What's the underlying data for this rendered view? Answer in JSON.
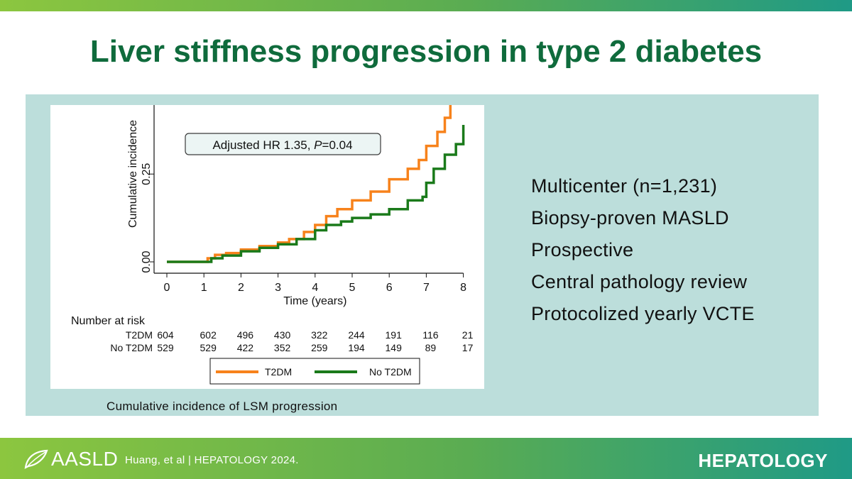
{
  "slide": {
    "title": "Liver stiffness progression in type 2 diabetes",
    "caption": "Cumulative incidence of LSM progression",
    "bullets": [
      "Multicenter (n=1,231)",
      "Biopsy-proven  MASLD",
      "Prospective",
      "Central pathology  review",
      "Protocolized  yearly VCTE"
    ]
  },
  "footer": {
    "logo_text": "AASLD",
    "citation": "Huang,  et al  |  HEPATOLOGY  2024.",
    "journal": "HEPATOLOGY"
  },
  "colors": {
    "title": "#0f6b3c",
    "panel": "#bcdedb",
    "t2dm": "#f7821b",
    "no_t2dm": "#1a7a1a"
  },
  "chart_data": {
    "type": "line",
    "xlabel": "Time (years)",
    "ylabel": "Cumulative incidence",
    "x_ticks": [
      0,
      1,
      2,
      3,
      4,
      5,
      6,
      7,
      8
    ],
    "y_ticks": [
      "0.00",
      "0.25"
    ],
    "xlim": [
      0,
      8
    ],
    "ylim": [
      0,
      0.45
    ],
    "annotation": {
      "prefix": "Adjusted HR 1.35, ",
      "italic": "P",
      "suffix": "=0.04"
    },
    "legend": {
      "position": "bottom",
      "entries": [
        "T2DM",
        "No T2DM"
      ]
    },
    "series": [
      {
        "name": "T2DM",
        "color": "#f7821b",
        "points": [
          [
            0,
            0
          ],
          [
            1,
            0
          ],
          [
            1.1,
            0.01
          ],
          [
            1.3,
            0.02
          ],
          [
            1.6,
            0.025
          ],
          [
            2,
            0.035
          ],
          [
            2.5,
            0.045
          ],
          [
            3,
            0.055
          ],
          [
            3.3,
            0.065
          ],
          [
            3.7,
            0.085
          ],
          [
            4,
            0.105
          ],
          [
            4.3,
            0.13
          ],
          [
            4.6,
            0.15
          ],
          [
            5,
            0.175
          ],
          [
            5.5,
            0.2
          ],
          [
            6,
            0.235
          ],
          [
            6.5,
            0.265
          ],
          [
            6.8,
            0.29
          ],
          [
            7,
            0.33
          ],
          [
            7.3,
            0.37
          ],
          [
            7.5,
            0.41
          ],
          [
            7.65,
            0.45
          ]
        ]
      },
      {
        "name": "No T2DM",
        "color": "#1a7a1a",
        "points": [
          [
            0,
            0
          ],
          [
            1,
            0
          ],
          [
            1.2,
            0.01
          ],
          [
            1.5,
            0.018
          ],
          [
            2,
            0.03
          ],
          [
            2.5,
            0.04
          ],
          [
            3,
            0.05
          ],
          [
            3.5,
            0.065
          ],
          [
            4,
            0.09
          ],
          [
            4.3,
            0.105
          ],
          [
            4.7,
            0.115
          ],
          [
            5,
            0.125
          ],
          [
            5.5,
            0.135
          ],
          [
            6,
            0.15
          ],
          [
            6.5,
            0.175
          ],
          [
            6.9,
            0.185
          ],
          [
            7,
            0.225
          ],
          [
            7.2,
            0.265
          ],
          [
            7.5,
            0.305
          ],
          [
            7.8,
            0.335
          ],
          [
            8,
            0.39
          ]
        ]
      }
    ],
    "risk_table": {
      "title": "Number at risk",
      "rows": [
        {
          "label": "T2DM",
          "values": [
            "604",
            "602",
            "496",
            "430",
            "322",
            "244",
            "191",
            "116",
            "21"
          ]
        },
        {
          "label": "No T2DM",
          "values": [
            "529",
            "529",
            "422",
            "352",
            "259",
            "194",
            "149",
            "89",
            "17"
          ]
        }
      ]
    }
  }
}
